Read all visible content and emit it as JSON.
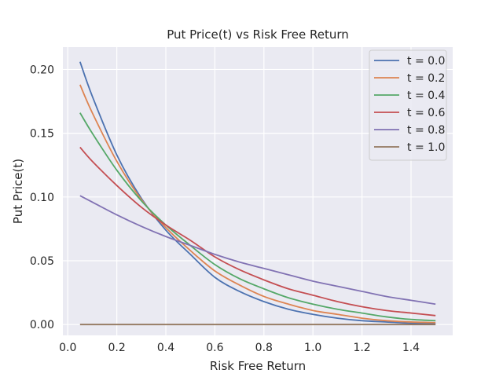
{
  "chart_data": {
    "type": "line",
    "title": "Put Price(t) vs Risk Free Return",
    "xlabel": "Risk Free Return",
    "ylabel": "Put Price(t)",
    "xlim": [
      -0.02,
      1.57
    ],
    "ylim": [
      -0.0085,
      0.2175
    ],
    "xticks": [
      0.0,
      0.2,
      0.4,
      0.6,
      0.8,
      1.0,
      1.2,
      1.4
    ],
    "xtick_labels": [
      "0.0",
      "0.2",
      "0.4",
      "0.6",
      "0.8",
      "1.0",
      "1.2",
      "1.4"
    ],
    "yticks": [
      0.0,
      0.05,
      0.1,
      0.15,
      0.2
    ],
    "ytick_labels": [
      "0.00",
      "0.05",
      "0.10",
      "0.15",
      "0.20"
    ],
    "grid": true,
    "legend_position": "top-right",
    "x": [
      0.05,
      0.1,
      0.2,
      0.3,
      0.4,
      0.5,
      0.6,
      0.7,
      0.8,
      0.9,
      1.0,
      1.1,
      1.2,
      1.3,
      1.4,
      1.5
    ],
    "series": [
      {
        "name": "t = 0.0",
        "color": "#4c72b0",
        "values": [
          0.206,
          0.179,
          0.133,
          0.099,
          0.074,
          0.055,
          0.037,
          0.026,
          0.018,
          0.012,
          0.008,
          0.005,
          0.003,
          0.002,
          0.001,
          0.0005
        ]
      },
      {
        "name": "t = 0.2",
        "color": "#dd8452",
        "values": [
          0.188,
          0.166,
          0.128,
          0.098,
          0.076,
          0.058,
          0.042,
          0.031,
          0.022,
          0.016,
          0.011,
          0.008,
          0.005,
          0.003,
          0.002,
          0.0015
        ]
      },
      {
        "name": "t = 0.4",
        "color": "#55a868",
        "values": [
          0.166,
          0.15,
          0.121,
          0.097,
          0.078,
          0.062,
          0.047,
          0.036,
          0.028,
          0.021,
          0.016,
          0.012,
          0.009,
          0.006,
          0.004,
          0.003
        ]
      },
      {
        "name": "t = 0.6",
        "color": "#c44e52",
        "values": [
          0.139,
          0.128,
          0.109,
          0.092,
          0.078,
          0.066,
          0.053,
          0.043,
          0.035,
          0.028,
          0.023,
          0.018,
          0.014,
          0.011,
          0.009,
          0.007
        ]
      },
      {
        "name": "t = 0.8",
        "color": "#8172b3",
        "values": [
          0.101,
          0.096,
          0.086,
          0.077,
          0.069,
          0.062,
          0.055,
          0.049,
          0.044,
          0.039,
          0.034,
          0.03,
          0.026,
          0.022,
          0.019,
          0.016
        ]
      },
      {
        "name": "t = 1.0",
        "color": "#937860",
        "values": [
          0.0,
          0.0,
          0.0,
          0.0,
          0.0,
          0.0,
          0.0,
          0.0,
          0.0,
          0.0,
          0.0,
          0.0,
          0.0,
          0.0,
          0.0,
          0.0
        ]
      }
    ]
  },
  "colors": {
    "plot_background": "#eaeaf2",
    "grid": "#ffffff",
    "page_background": "#ffffff"
  }
}
